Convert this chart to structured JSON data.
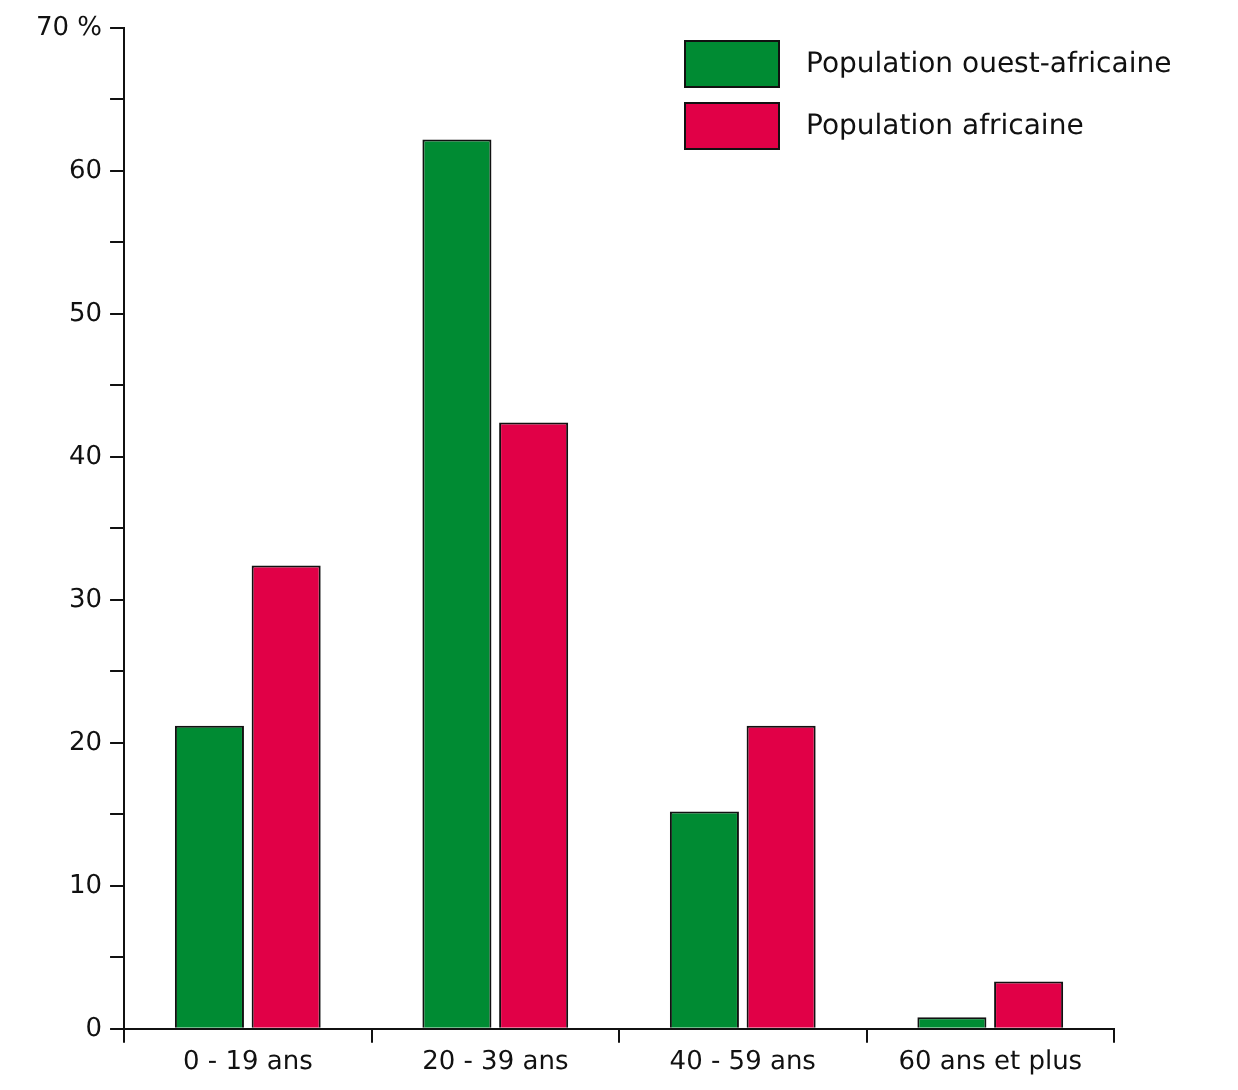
{
  "chart_data": {
    "type": "bar",
    "categories": [
      "0 - 19 ans",
      "20 - 39 ans",
      "40 - 59 ans",
      "60 ans et plus"
    ],
    "series": [
      {
        "name": "Population ouest-africaine",
        "color": "#008b33",
        "values": [
          21.2,
          62.2,
          15.2,
          0.8
        ]
      },
      {
        "name": "Population africaine",
        "color": "#e10047",
        "values": [
          32.4,
          42.4,
          21.2,
          3.3
        ]
      }
    ],
    "ylim": [
      0,
      70
    ],
    "yticks": [
      0,
      {
        "value": 5,
        "label": null
      },
      10,
      {
        "value": 15,
        "label": null
      },
      20,
      {
        "value": 25,
        "label": null
      },
      30,
      {
        "value": 35,
        "label": null
      },
      40,
      {
        "value": 45,
        "label": null
      },
      50,
      {
        "value": 55,
        "label": null
      },
      60,
      {
        "value": 65,
        "label": null
      },
      {
        "value": 70,
        "label": "70 %"
      }
    ],
    "grid": false,
    "legend": "top right"
  }
}
